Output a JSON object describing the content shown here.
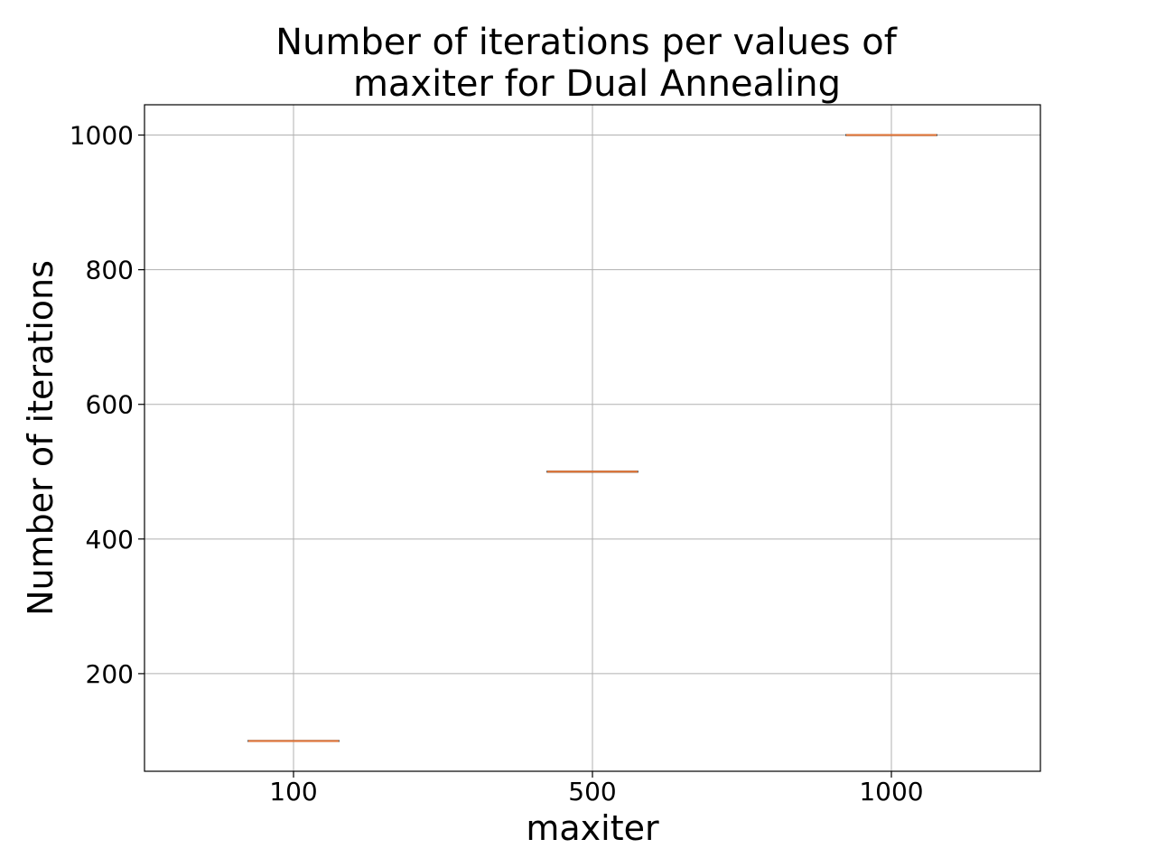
{
  "chart_data": {
    "type": "box",
    "title_lines": [
      "Number of iterations per values of",
      "maxiter for Dual Annealing"
    ],
    "xlabel": "maxiter",
    "ylabel": "Number of iterations",
    "categories": [
      "100",
      "500",
      "1000"
    ],
    "series": [
      {
        "category": "100",
        "min": 100,
        "q1": 100,
        "median": 100,
        "q3": 100,
        "max": 100
      },
      {
        "category": "500",
        "min": 500,
        "q1": 500,
        "median": 500,
        "q3": 500,
        "max": 500
      },
      {
        "category": "1000",
        "min": 1000,
        "q1": 1000,
        "median": 1000,
        "q3": 1000,
        "max": 1000
      }
    ],
    "yticks": [
      200,
      400,
      600,
      800,
      1000
    ],
    "ylim": [
      55,
      1045
    ],
    "grid": true,
    "colors": {
      "median": "#e8793a",
      "grid": "#b0b0b0",
      "frame": "#000000"
    }
  }
}
